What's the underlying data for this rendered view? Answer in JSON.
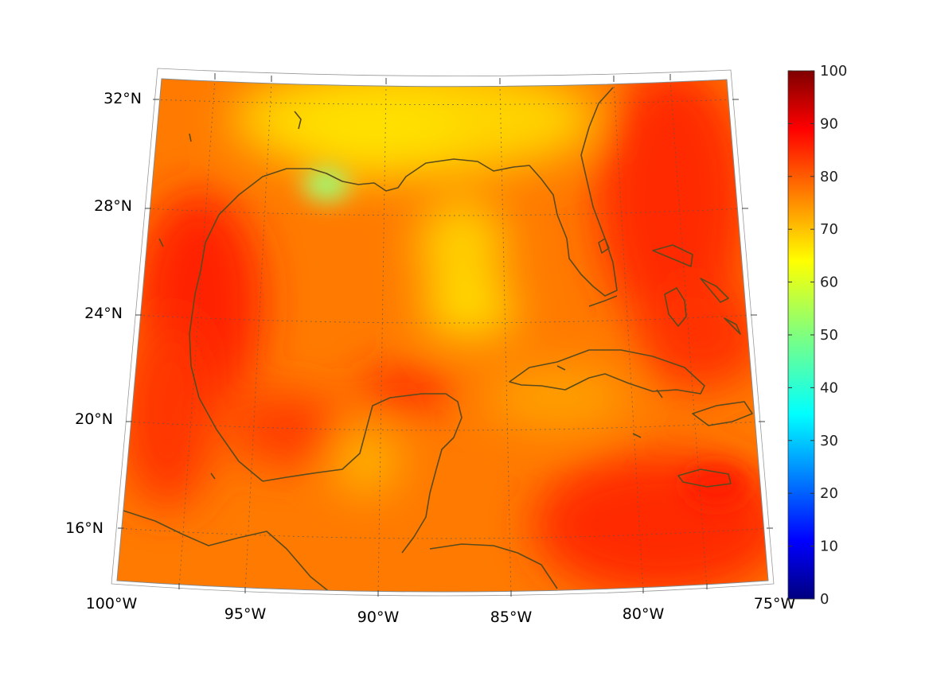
{
  "map": {
    "projection": "lambert-conformal-conic",
    "lon_range": [
      -100,
      -75
    ],
    "lat_range": [
      14,
      33
    ],
    "lon_ticks": [
      "100°W",
      "95°W",
      "90°W",
      "85°W",
      "80°W",
      "75°W"
    ],
    "lat_ticks": [
      "32°N",
      "28°N",
      "24°N",
      "20°N",
      "16°N"
    ],
    "grid": true,
    "coastline_color": "#5a4a1e"
  },
  "colorbar": {
    "colormap": "jet",
    "min": 0,
    "max": 100,
    "ticks": [
      "0",
      "10",
      "20",
      "30",
      "40",
      "50",
      "60",
      "70",
      "80",
      "90",
      "100"
    ]
  }
}
